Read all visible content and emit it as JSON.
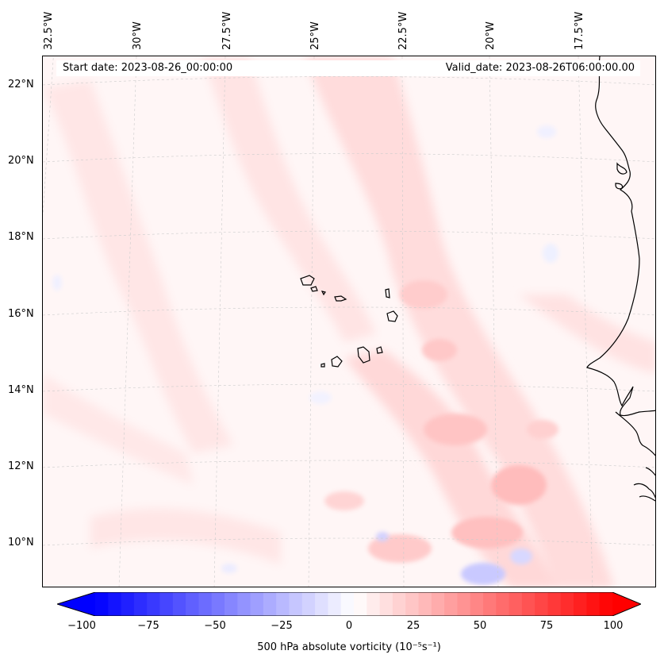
{
  "header": {
    "start_date": "Start date: 2023-08-26_00:00:00",
    "valid_date": "Valid_date: 2023-08-26T06:00:00.00"
  },
  "longitude_labels": [
    "32.5°W",
    "30°W",
    "27.5°W",
    "25°W",
    "22.5°W",
    "20°W",
    "17.5°W"
  ],
  "latitude_labels": [
    "22°N",
    "20°N",
    "18°N",
    "16°N",
    "14°N",
    "12°N",
    "10°N"
  ],
  "colorbar": {
    "ticks": [
      "−100",
      "−75",
      "−50",
      "−25",
      "0",
      "25",
      "50",
      "75",
      "100"
    ],
    "range": [
      -100,
      100
    ],
    "title": "500 hPa absolute vorticity (10⁻⁵s⁻¹)",
    "colormap": "bwr",
    "extend": "both",
    "min_color": "#0000ff",
    "mid_color": "#ffffff",
    "max_color": "#ff0000"
  },
  "map": {
    "projection": "conic",
    "gridlines": true,
    "coastlines": true,
    "features": [
      "Cape Verde islands",
      "West African coast (Senegal, Gambia, Guinea-Bissau)"
    ],
    "field": "500 hPa absolute vorticity"
  }
}
